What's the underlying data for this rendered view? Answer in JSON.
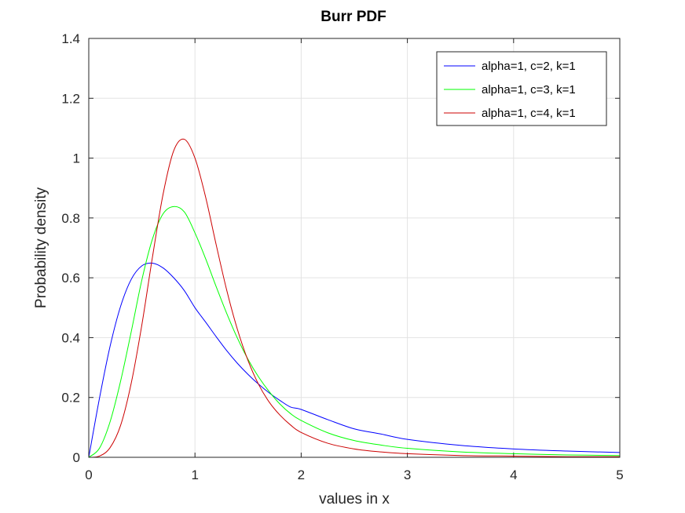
{
  "chart_data": {
    "type": "line",
    "title": "Burr PDF",
    "xlabel": "values in x",
    "ylabel": "Probability density",
    "xlim": [
      0,
      5
    ],
    "ylim": [
      0,
      1.4
    ],
    "xticks": [
      "0",
      "1",
      "2",
      "3",
      "4",
      "5"
    ],
    "yticks": [
      "0",
      "0.2",
      "0.4",
      "0.6",
      "0.8",
      "1",
      "1.2",
      "1.4"
    ],
    "grid": true,
    "legend_position": "top-right",
    "x": [
      0,
      0.1,
      0.2,
      0.3,
      0.4,
      0.5,
      0.6,
      0.7,
      0.8,
      0.9,
      1.0,
      1.1,
      1.2,
      1.3,
      1.4,
      1.5,
      1.6,
      1.7,
      1.8,
      1.9,
      2.0,
      2.25,
      2.5,
      2.75,
      3.0,
      3.5,
      4.0,
      4.5,
      5.0
    ],
    "series": [
      {
        "name": "alpha=1, c=2, k=1",
        "color": "#0000ff",
        "values": [
          0,
          0.196,
          0.37,
          0.505,
          0.595,
          0.64,
          0.649,
          0.633,
          0.6,
          0.557,
          0.5,
          0.452,
          0.403,
          0.356,
          0.314,
          0.277,
          0.244,
          0.215,
          0.19,
          0.168,
          0.16,
          0.126,
          0.095,
          0.078,
          0.06,
          0.04,
          0.028,
          0.021,
          0.016
        ]
      },
      {
        "name": "alpha=1, c=3, k=1",
        "color": "#00ff00",
        "values": [
          0,
          0.03,
          0.118,
          0.255,
          0.42,
          0.593,
          0.73,
          0.814,
          0.838,
          0.82,
          0.75,
          0.664,
          0.57,
          0.48,
          0.398,
          0.327,
          0.268,
          0.219,
          0.178,
          0.146,
          0.123,
          0.082,
          0.056,
          0.041,
          0.03,
          0.018,
          0.012,
          0.008,
          0.006
        ]
      },
      {
        "name": "alpha=1, c=4, k=1",
        "color": "#cc0000",
        "values": [
          0,
          0.004,
          0.032,
          0.107,
          0.248,
          0.443,
          0.67,
          0.88,
          1.025,
          1.063,
          1.0,
          0.87,
          0.71,
          0.557,
          0.427,
          0.323,
          0.243,
          0.184,
          0.141,
          0.108,
          0.083,
          0.047,
          0.028,
          0.018,
          0.012,
          0.006,
          0.004,
          0.002,
          0.002
        ]
      }
    ]
  }
}
